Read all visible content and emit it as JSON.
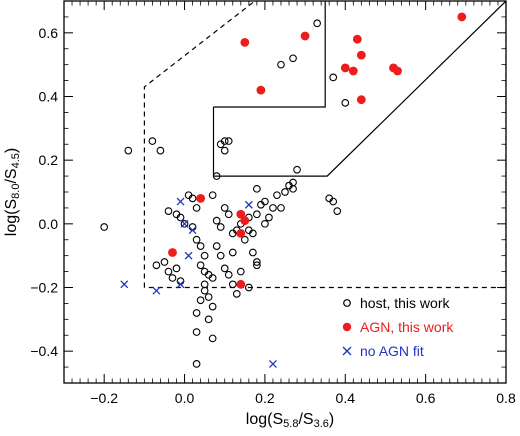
{
  "chart_data": {
    "type": "scatter",
    "xlabel": {
      "base": "log(S",
      "sub1": "5.8",
      "mid": "/S",
      "sub2": "3.6",
      "end": ")"
    },
    "ylabel": {
      "base": "log(S",
      "sub1": "8.0",
      "mid": "/S",
      "sub2": "4.5",
      "end": ")"
    },
    "xlim": [
      -0.3,
      0.8
    ],
    "ylim": [
      -0.5,
      0.7
    ],
    "xticks": [
      -0.2,
      0.0,
      0.2,
      0.4,
      0.6,
      0.8
    ],
    "xtick_labels": [
      "−0.2",
      "0.0",
      "0.2",
      "0.4",
      "0.6",
      "0.8"
    ],
    "yticks": [
      -0.4,
      -0.2,
      0.0,
      0.2,
      0.4,
      0.6
    ],
    "ytick_labels": [
      "−0.4",
      "−0.2",
      "0.0",
      "0.2",
      "0.4",
      "0.6"
    ],
    "grid": false,
    "legend_position": "bottom-right",
    "series": [
      {
        "name": "host, this work",
        "marker": "open-circle",
        "color": "#000000",
        "points": [
          [
            -0.2,
            -0.01
          ],
          [
            -0.14,
            0.23
          ],
          [
            -0.08,
            0.26
          ],
          [
            -0.06,
            0.23
          ],
          [
            -0.07,
            -0.13
          ],
          [
            -0.05,
            -0.12
          ],
          [
            -0.04,
            -0.15
          ],
          [
            -0.03,
            -0.17
          ],
          [
            -0.02,
            -0.14
          ],
          [
            -0.01,
            -0.18
          ],
          [
            -0.04,
            0.04
          ],
          [
            -0.02,
            0.03
          ],
          [
            -0.01,
            0.02
          ],
          [
            0.0,
            0.0
          ],
          [
            0.01,
            0.09
          ],
          [
            0.02,
            0.08
          ],
          [
            0.03,
            0.05
          ],
          [
            0.02,
            -0.01
          ],
          [
            0.03,
            -0.05
          ],
          [
            0.04,
            -0.07
          ],
          [
            0.05,
            -0.1
          ],
          [
            0.04,
            -0.13
          ],
          [
            0.05,
            -0.15
          ],
          [
            0.06,
            -0.16
          ],
          [
            0.07,
            -0.17
          ],
          [
            0.05,
            -0.19
          ],
          [
            0.05,
            -0.21
          ],
          [
            0.06,
            -0.23
          ],
          [
            0.04,
            -0.24
          ],
          [
            0.07,
            -0.26
          ],
          [
            0.03,
            -0.28
          ],
          [
            0.06,
            -0.3
          ],
          [
            0.03,
            -0.34
          ],
          [
            0.07,
            -0.36
          ],
          [
            0.03,
            -0.44
          ],
          [
            0.08,
            -0.07
          ],
          [
            0.09,
            -0.1
          ],
          [
            0.1,
            -0.14
          ],
          [
            0.11,
            -0.16
          ],
          [
            0.12,
            -0.19
          ],
          [
            0.13,
            -0.22
          ],
          [
            0.14,
            -0.15
          ],
          [
            0.15,
            -0.05
          ],
          [
            0.16,
            -0.02
          ],
          [
            0.17,
            -0.09
          ],
          [
            0.18,
            -0.12
          ],
          [
            0.18,
            -0.13
          ],
          [
            0.16,
            -0.2
          ],
          [
            0.08,
            0.01
          ],
          [
            0.09,
            -0.01
          ],
          [
            0.11,
            0.03
          ],
          [
            0.12,
            -0.03
          ],
          [
            0.13,
            -0.02
          ],
          [
            0.14,
            0.0
          ],
          [
            0.12,
            -0.09
          ],
          [
            0.16,
            0.02
          ],
          [
            0.18,
            0.03
          ],
          [
            0.19,
            0.06
          ],
          [
            0.2,
            0.07
          ],
          [
            0.22,
            0.05
          ],
          [
            0.23,
            0.09
          ],
          [
            0.25,
            0.1
          ],
          [
            0.26,
            0.12
          ],
          [
            0.17,
            -0.03
          ],
          [
            0.2,
            0.0
          ],
          [
            0.21,
            0.02
          ],
          [
            0.24,
            0.05
          ],
          [
            0.27,
            0.13
          ],
          [
            0.1,
            0.05
          ],
          [
            0.07,
            0.09
          ],
          [
            0.08,
            0.15
          ],
          [
            0.09,
            0.25
          ],
          [
            0.1,
            0.26
          ],
          [
            0.11,
            0.26
          ],
          [
            0.1,
            0.23
          ],
          [
            0.18,
            0.11
          ],
          [
            0.27,
            0.11
          ],
          [
            0.28,
            0.17
          ],
          [
            0.36,
            0.08
          ],
          [
            0.37,
            0.07
          ],
          [
            0.38,
            0.04
          ],
          [
            0.24,
            0.5
          ],
          [
            0.27,
            0.52
          ],
          [
            0.33,
            0.63
          ],
          [
            0.37,
            0.46
          ],
          [
            0.4,
            0.38
          ]
        ]
      },
      {
        "name": "AGN, this work",
        "marker": "filled-circle",
        "color": "#ee1c1c",
        "points": [
          [
            0.69,
            0.65
          ],
          [
            0.15,
            0.57
          ],
          [
            0.3,
            0.59
          ],
          [
            0.43,
            0.58
          ],
          [
            0.44,
            0.53
          ],
          [
            0.42,
            0.48
          ],
          [
            0.4,
            0.49
          ],
          [
            0.52,
            0.49
          ],
          [
            0.53,
            0.48
          ],
          [
            0.44,
            0.39
          ],
          [
            0.19,
            0.42
          ],
          [
            0.04,
            0.08
          ],
          [
            0.14,
            0.03
          ],
          [
            0.15,
            0.01
          ],
          [
            0.14,
            -0.03
          ],
          [
            -0.03,
            -0.09
          ],
          [
            0.14,
            -0.19
          ]
        ]
      },
      {
        "name": "no AGN fit",
        "marker": "x",
        "color": "#2035c4",
        "points": [
          [
            -0.15,
            -0.19
          ],
          [
            -0.07,
            -0.21
          ],
          [
            -0.01,
            -0.19
          ],
          [
            0.0,
            0.0
          ],
          [
            0.02,
            -0.02
          ],
          [
            -0.01,
            0.07
          ],
          [
            0.01,
            -0.1
          ],
          [
            0.16,
            0.06
          ],
          [
            0.22,
            -0.44
          ]
        ]
      }
    ],
    "regions": [
      {
        "style": "dashed",
        "points": [
          [
            -0.1,
            -0.2
          ],
          [
            -0.1,
            0.43
          ],
          [
            0.46,
            0.98
          ],
          [
            0.8,
            0.98
          ],
          [
            0.8,
            -0.2
          ],
          [
            -0.1,
            -0.2
          ]
        ]
      },
      {
        "style": "solid",
        "points": [
          [
            0.072,
            0.367
          ],
          [
            0.072,
            0.15
          ],
          [
            0.355,
            0.15
          ],
          [
            0.8,
            0.7
          ],
          [
            0.8,
            0.98
          ],
          [
            0.7,
            0.98
          ],
          [
            0.5,
            0.78
          ],
          [
            0.35,
            0.78
          ],
          [
            0.35,
            0.367
          ],
          [
            0.072,
            0.367
          ]
        ]
      }
    ]
  }
}
